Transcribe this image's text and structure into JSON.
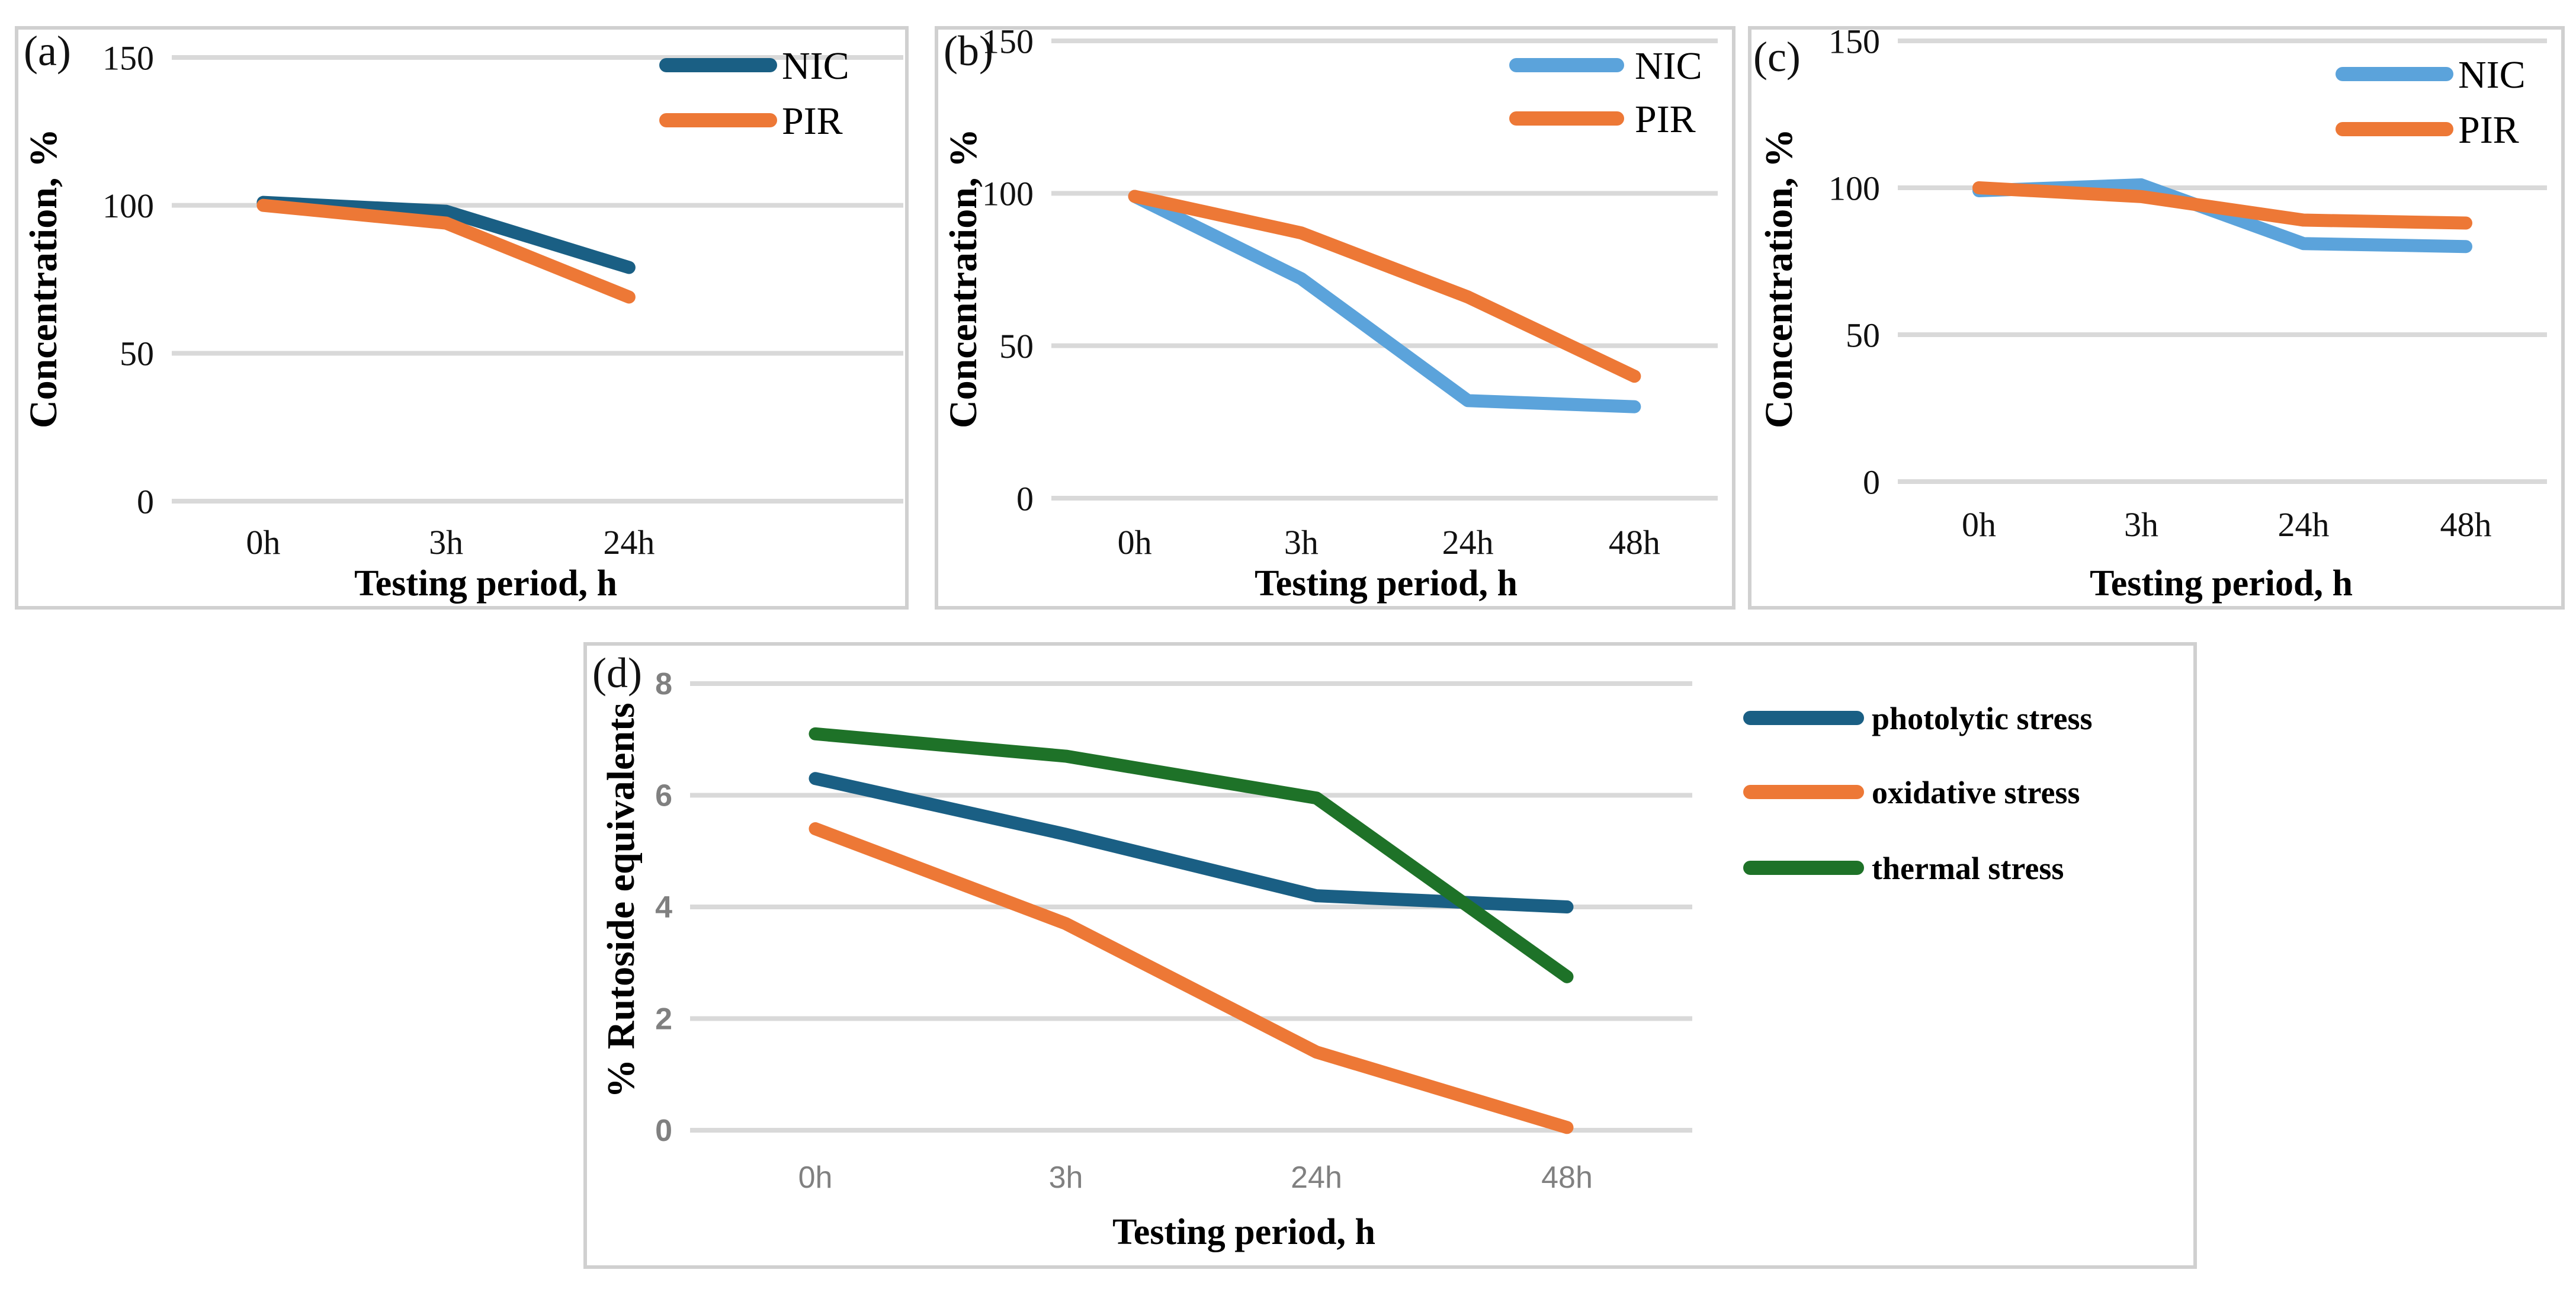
{
  "colors": {
    "dark_blue": "#1a5f84",
    "light_blue": "#5ba3db",
    "orange": "#ed7836",
    "green": "#1e7228",
    "grid": "#d9d9d9",
    "frame": "#d0d0d0"
  },
  "chart_data": [
    {
      "type": "line",
      "panel_label": "(a)",
      "title": "",
      "xlabel": "Testing period, h",
      "ylabel": "Concentration, %",
      "categories": [
        "0h",
        "3h",
        "24h"
      ],
      "ylim": [
        0,
        150
      ],
      "yticks": [
        "0",
        "50",
        "100",
        "150"
      ],
      "grid": true,
      "legend": "top-right",
      "series": [
        {
          "name": "NIC",
          "color": "#1a5f84",
          "values": [
            101,
            98,
            79
          ]
        },
        {
          "name": "PIR",
          "color": "#ed7836",
          "values": [
            100,
            94,
            69
          ]
        }
      ]
    },
    {
      "type": "line",
      "panel_label": "(b)",
      "title": "",
      "xlabel": "Testing period, h",
      "ylabel": "Concentration, %",
      "categories": [
        "0h",
        "3h",
        "24h",
        "48h"
      ],
      "ylim": [
        0,
        150
      ],
      "yticks": [
        "0",
        "50",
        "100",
        "150"
      ],
      "grid": false,
      "legend": "top-right",
      "series": [
        {
          "name": "NIC",
          "color": "#5ba3db",
          "values": [
            99,
            72,
            32,
            30
          ]
        },
        {
          "name": "PIR",
          "color": "#ed7836",
          "values": [
            99,
            87,
            66,
            40
          ]
        }
      ]
    },
    {
      "type": "line",
      "panel_label": "(c)",
      "title": "",
      "xlabel": "Testing period, h",
      "ylabel": "Concentration, %",
      "categories": [
        "0h",
        "3h",
        "24h",
        "48h"
      ],
      "ylim": [
        0,
        150
      ],
      "yticks": [
        "0",
        "50",
        "100",
        "150"
      ],
      "grid": false,
      "legend": "top-right",
      "series": [
        {
          "name": "NIC",
          "color": "#5ba3db",
          "values": [
            99,
            101,
            81,
            80
          ]
        },
        {
          "name": "PIR",
          "color": "#ed7836",
          "values": [
            100,
            97,
            89,
            88
          ]
        }
      ]
    },
    {
      "type": "line",
      "panel_label": "(d)",
      "title": "",
      "xlabel": "Testing period, h",
      "ylabel": "% Rutoside equivalents",
      "categories": [
        "0h",
        "3h",
        "24h",
        "48h"
      ],
      "ylim": [
        0,
        8
      ],
      "yticks": [
        "0",
        "2",
        "4",
        "6",
        "8"
      ],
      "grid": true,
      "legend": "right",
      "series": [
        {
          "name": "photolytic stress",
          "color": "#1a5f84",
          "values": [
            6.3,
            5.3,
            4.2,
            4.0
          ]
        },
        {
          "name": "oxidative stress",
          "color": "#ed7836",
          "values": [
            5.4,
            3.7,
            1.4,
            0.05
          ]
        },
        {
          "name": "thermal stress",
          "color": "#1e7228",
          "values": [
            7.1,
            6.7,
            5.95,
            2.75
          ]
        }
      ]
    }
  ]
}
